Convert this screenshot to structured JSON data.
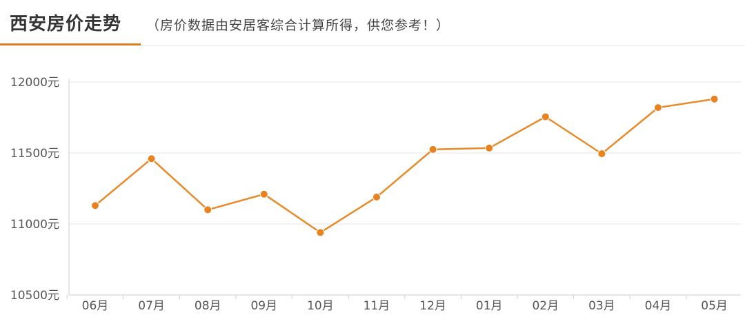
{
  "header": {
    "title": "西安房价走势",
    "subtitle": "（房价数据由安居客综合计算所得，供您参考！）"
  },
  "colors": {
    "accent": "#e07a1f",
    "line": "#e8892a",
    "point": "#e8821e",
    "grid": "#e4e4e4",
    "axis": "#cccccc"
  },
  "chart_data": {
    "type": "line",
    "title": "西安房价走势",
    "categories": [
      "06月",
      "07月",
      "08月",
      "09月",
      "10月",
      "11月",
      "12月",
      "01月",
      "02月",
      "03月",
      "04月",
      "05月"
    ],
    "series": [
      {
        "values": [
          11130,
          11460,
          11100,
          11210,
          10940,
          11190,
          11525,
          11535,
          11755,
          11495,
          11820,
          11880
        ]
      }
    ],
    "ylim": [
      10500,
      12000
    ],
    "yticks": [
      12000,
      11500,
      11000,
      10500
    ],
    "ytick_labels": [
      "12000元",
      "11500元",
      "11000元",
      "10500元"
    ],
    "xlabel": "",
    "ylabel": "",
    "grid": true
  }
}
